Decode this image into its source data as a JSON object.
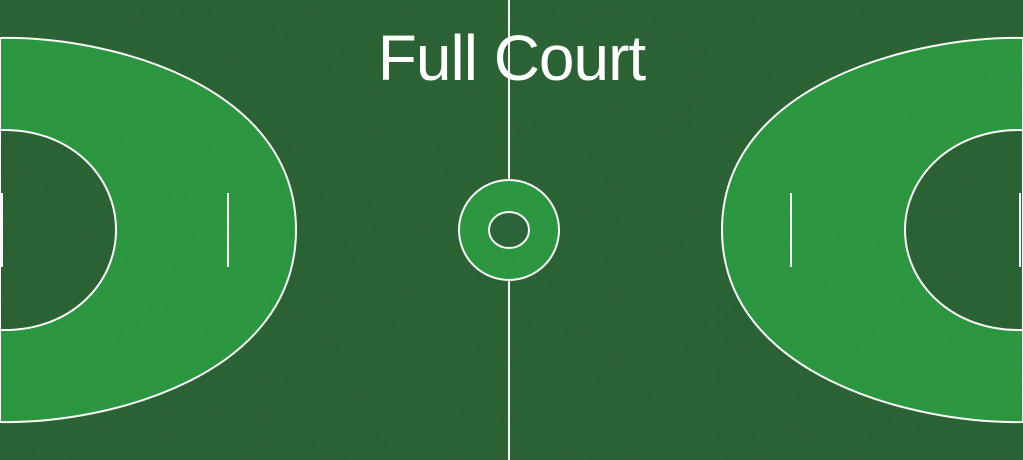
{
  "title": "Full Court",
  "colors": {
    "court_background": "#2d6536",
    "zone_fill": "#2d9a42",
    "circle_fill": "#2e663a",
    "line_color": "#ffffff"
  }
}
